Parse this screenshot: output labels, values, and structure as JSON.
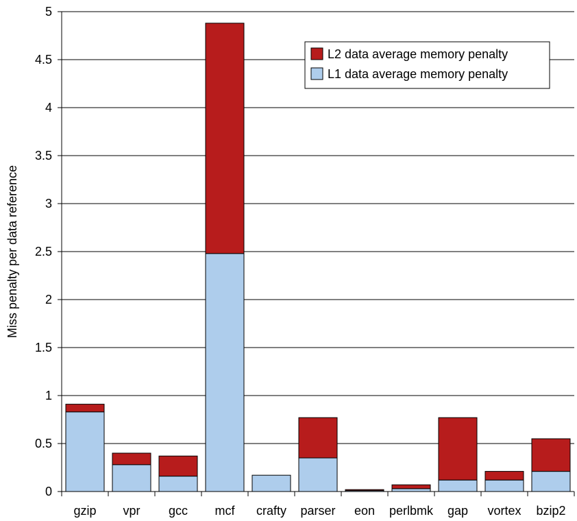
{
  "chart_data": {
    "type": "bar",
    "stacked": true,
    "title": "",
    "xlabel": "",
    "ylabel": "Miss penalty per data reference",
    "ylim": [
      0,
      5
    ],
    "ytick_step": 0.5,
    "yticks": [
      "0",
      "0.5",
      "1",
      "1.5",
      "2",
      "2.5",
      "3",
      "3.5",
      "4",
      "4.5",
      "5"
    ],
    "grid": "horizontal",
    "legend_position": "top-right",
    "categories": [
      "gzip",
      "vpr",
      "gcc",
      "mcf",
      "crafty",
      "parser",
      "eon",
      "perlbmk",
      "gap",
      "vortex",
      "bzip2"
    ],
    "series": [
      {
        "name": "L1 data average memory penalty",
        "color": "#aecdec",
        "values": [
          0.83,
          0.28,
          0.16,
          2.48,
          0.17,
          0.35,
          0.01,
          0.03,
          0.12,
          0.12,
          0.21
        ]
      },
      {
        "name": "L2 data average memory penalty",
        "color": "#b71c1c",
        "values": [
          0.08,
          0.12,
          0.21,
          2.4,
          0.0,
          0.42,
          0.01,
          0.04,
          0.65,
          0.09,
          0.34
        ]
      }
    ],
    "legend_order": [
      1,
      0
    ]
  }
}
